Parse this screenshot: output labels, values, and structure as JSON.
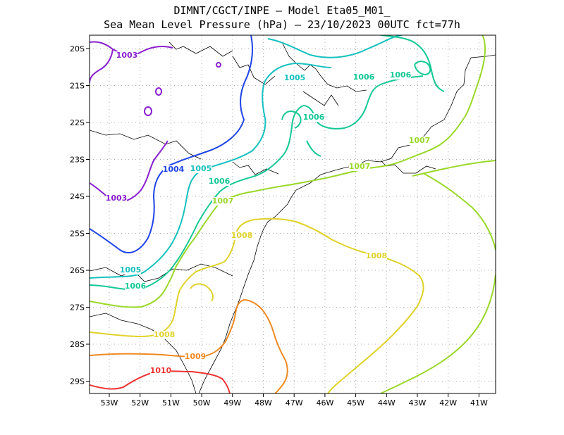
{
  "title_line1": "DIMNT/CGCT/INPE –  Model Eta05_M01_",
  "title_line2": "Sea Mean Level Pressure (hPa) – 23/10/2023 00UTC fct=77h",
  "x_ticks": [
    "53W",
    "52W",
    "51W",
    "50W",
    "49W",
    "48W",
    "47W",
    "46W",
    "45W",
    "44W",
    "43W",
    "42W",
    "41W"
  ],
  "y_ticks": [
    "20S",
    "21S",
    "22S",
    "23S",
    "24S",
    "25S",
    "26S",
    "27S",
    "28S",
    "29S"
  ],
  "contour_labels": [
    {
      "text": "1003",
      "color": "#8a1fd0"
    },
    {
      "text": "1003",
      "color": "#8a1fd0"
    },
    {
      "text": "1004",
      "color": "#1f44e6"
    },
    {
      "text": "1005",
      "color": "#16c0c0"
    },
    {
      "text": "1005",
      "color": "#16c0c0"
    },
    {
      "text": "1005",
      "color": "#16c0c0"
    },
    {
      "text": "1006",
      "color": "#14c896"
    },
    {
      "text": "1006",
      "color": "#14c896"
    },
    {
      "text": "1006",
      "color": "#14c896"
    },
    {
      "text": "1006",
      "color": "#14c896"
    },
    {
      "text": "1006",
      "color": "#14c896"
    },
    {
      "text": "1007",
      "color": "#9ad82a"
    },
    {
      "text": "1007",
      "color": "#9ad82a"
    },
    {
      "text": "1007",
      "color": "#9ad82a"
    },
    {
      "text": "1008",
      "color": "#e0d22a"
    },
    {
      "text": "1008",
      "color": "#e0d22a"
    },
    {
      "text": "1008",
      "color": "#e0d22a"
    },
    {
      "text": "1009",
      "color": "#ee8a22"
    },
    {
      "text": "1010",
      "color": "#ee3333"
    }
  ],
  "colors": {
    "1003": "#8a1fd0",
    "1004": "#1f44e6",
    "1005": "#16c0c0",
    "1006": "#14c896",
    "1007": "#9ad82a",
    "1008": "#e0d22a",
    "1009": "#ee8a22",
    "1010": "#ee3333",
    "grid": "#aaaaaa",
    "coast": "#000000"
  }
}
